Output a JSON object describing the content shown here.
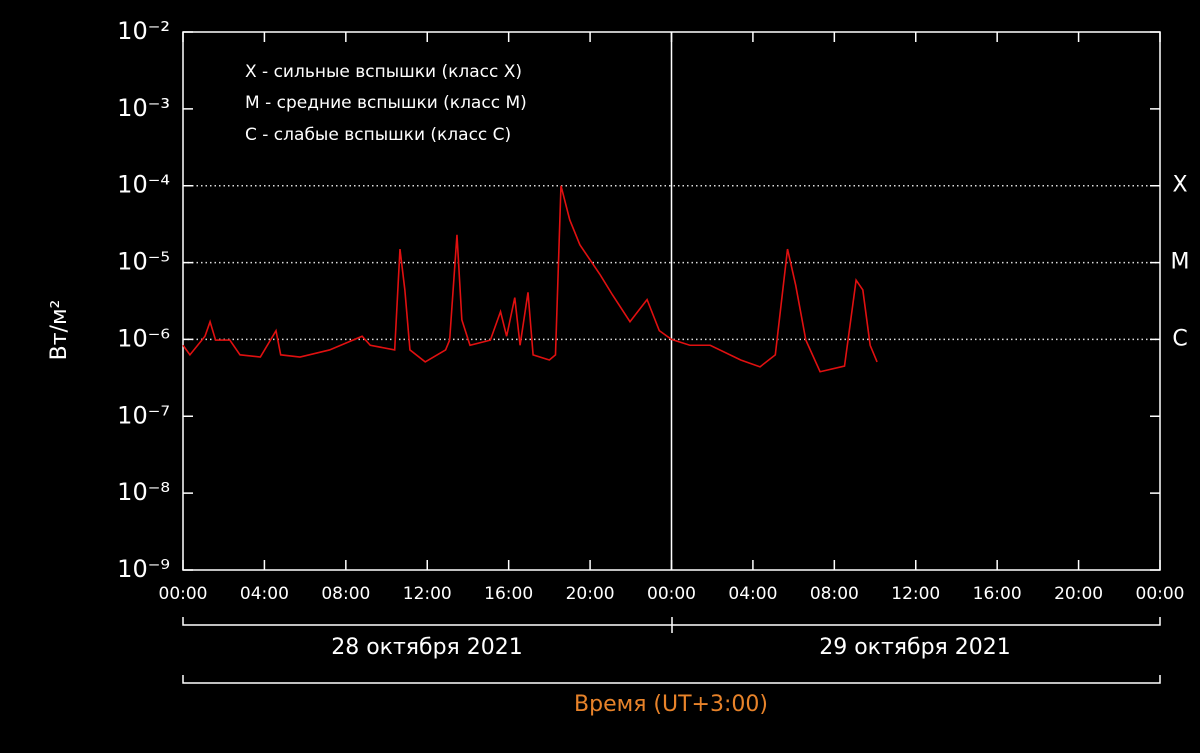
{
  "chart_data": {
    "type": "line",
    "y_label": "Вт/м²",
    "x_label": "Время (UT+3:00)",
    "date_labels": [
      "28 октября 2021",
      "29 октября 2021"
    ],
    "annotations": [
      "X - сильные вспышки (класс X)",
      "M - средние вспышки (класс M)",
      "C  - слабые вспышки (класс C)"
    ],
    "class_levels": [
      {
        "value": 0.0001,
        "label": "X"
      },
      {
        "value": 1e-05,
        "label": "M"
      },
      {
        "value": 1e-06,
        "label": "C"
      }
    ],
    "log_y": true,
    "xlim": [
      0,
      48
    ],
    "ylim": [
      1e-09,
      0.01
    ],
    "day_divider": 24,
    "xticks": [
      {
        "value": 0,
        "label": "00:00"
      },
      {
        "value": 4,
        "label": "04:00"
      },
      {
        "value": 8,
        "label": "08:00"
      },
      {
        "value": 12,
        "label": "12:00"
      },
      {
        "value": 16,
        "label": "16:00"
      },
      {
        "value": 20,
        "label": "20:00"
      },
      {
        "value": 24,
        "label": "00:00"
      },
      {
        "value": 28,
        "label": "04:00"
      },
      {
        "value": 32,
        "label": "08:00"
      },
      {
        "value": 36,
        "label": "12:00"
      },
      {
        "value": 40,
        "label": "16:00"
      },
      {
        "value": 44,
        "label": "20:00"
      },
      {
        "value": 48,
        "label": "00:00"
      }
    ],
    "yticks": [
      {
        "value": 1e-09,
        "label": "10⁻⁹"
      },
      {
        "value": 1e-08,
        "label": "10⁻⁸"
      },
      {
        "value": 1e-07,
        "label": "10⁻⁷"
      },
      {
        "value": 1e-06,
        "label": "10⁻⁶"
      },
      {
        "value": 1e-05,
        "label": "10⁻⁵"
      },
      {
        "value": 0.0001,
        "label": "10⁻⁴"
      },
      {
        "value": 0.001,
        "label": "10⁻³"
      },
      {
        "value": 0.01,
        "label": "10⁻²"
      }
    ],
    "x": [
      0,
      0.34,
      1.08,
      1.33,
      1.6,
      2.3,
      2.8,
      3.8,
      4.57,
      4.8,
      5.75,
      7.2,
      8.8,
      9.2,
      10.4,
      10.66,
      10.9,
      11.15,
      11.9,
      12.9,
      13.1,
      13.46,
      13.7,
      14.1,
      15.1,
      15.6,
      15.9,
      16.3,
      16.56,
      16.95,
      17.2,
      18.0,
      18.3,
      18.57,
      19.0,
      19.5,
      20.5,
      21.1,
      21.96,
      22.8,
      23.4,
      24.0,
      24.9,
      25.9,
      27.4,
      28.35,
      29.1,
      29.7,
      30.1,
      30.6,
      31.3,
      32.5,
      33.07,
      33.4,
      33.76,
      34.1
    ],
    "series": [
      {
        "name": "GOES",
        "color": "#e01010",
        "values": [
          8.4e-07,
          6.3e-07,
          1.1e-06,
          1.7e-06,
          9.8e-07,
          9.8e-07,
          6.3e-07,
          5.9e-07,
          1.3e-06,
          6.3e-07,
          5.9e-07,
          7.3e-07,
          1.1e-06,
          8.4e-07,
          7.3e-07,
          1.5e-05,
          4.4e-06,
          7.3e-07,
          5.1e-07,
          7.3e-07,
          9.8e-07,
          2.3e-05,
          1.8e-06,
          8.4e-07,
          9.8e-07,
          2.3e-06,
          1.1e-06,
          3.5e-06,
          8.4e-07,
          4.1e-06,
          6.3e-07,
          5.4e-07,
          6.3e-07,
          0.0001,
          3.6e-05,
          1.7e-05,
          6.9e-06,
          3.8e-06,
          1.7e-06,
          3.3e-06,
          1.3e-06,
          1e-06,
          8.4e-07,
          8.4e-07,
          5.4e-07,
          4.4e-07,
          6.3e-07,
          1.5e-05,
          5.1e-06,
          9.8e-07,
          3.8e-07,
          4.5e-07,
          5.9e-06,
          4.4e-06,
          8.4e-07,
          5.1e-07
        ]
      }
    ]
  }
}
